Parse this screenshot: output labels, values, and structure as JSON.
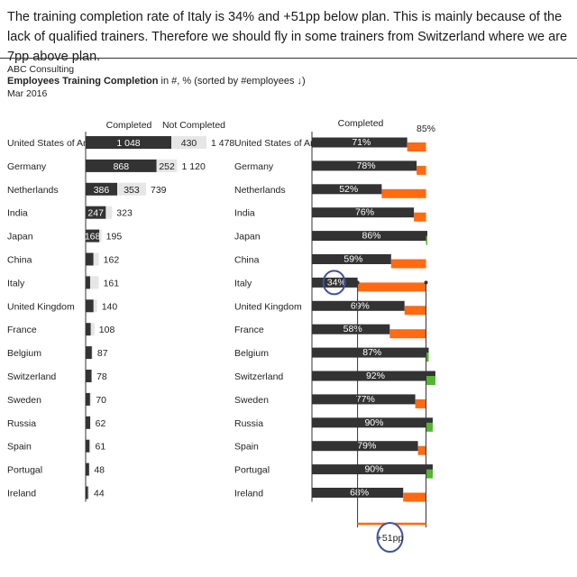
{
  "headline": "The training completion rate of Italy is 34% and +51pp below plan. This is mainly because of the lack of qualified trainers. Therefore we should fly in some trainers from Switzerland where we are 7pp above plan.",
  "company": "ABC Consulting",
  "subtitle": {
    "bold": "Employees Training Completion",
    "rest": " in #, % (sorted by #employees ↓)"
  },
  "date": "Mar 2016",
  "colors": {
    "completed": "#333333",
    "not_completed": "#e6e6e6",
    "below_plan": "#ff6a13",
    "above_plan": "#55b431",
    "highlight": "#3f51a0"
  },
  "chart_data": [
    {
      "type": "bar",
      "orientation": "horizontal",
      "stacked": true,
      "categories": [
        "United States of America",
        "Germany",
        "Netherlands",
        "India",
        "Japan",
        "China",
        "Italy",
        "United Kingdom",
        "France",
        "Belgium",
        "Switzerland",
        "Sweden",
        "Russia",
        "Spain",
        "Portugal",
        "Ireland"
      ],
      "series": [
        {
          "name": "Completed",
          "values": [
            1048,
            868,
            386,
            247,
            168,
            96,
            55,
            97,
            63,
            76,
            72,
            54,
            56,
            48,
            43,
            30
          ]
        },
        {
          "name": "Not Completed",
          "values": [
            430,
            252,
            353,
            76,
            27,
            66,
            106,
            43,
            45,
            11,
            6,
            16,
            6,
            13,
            5,
            14
          ]
        }
      ],
      "totals": [
        1478,
        1120,
        739,
        323,
        195,
        162,
        161,
        140,
        108,
        87,
        78,
        70,
        62,
        61,
        48,
        44
      ],
      "value_labels": {
        "Completed": [
          "1 048",
          "868",
          "386",
          "247",
          "168",
          "",
          "",
          "",
          "",
          "",
          "",
          "",
          "",
          "",
          "",
          ""
        ],
        "Not Completed": [
          "430",
          "252",
          "353",
          "",
          "",
          "",
          "",
          "",
          "",
          "",
          "",
          "",
          "",
          "",
          "",
          ""
        ],
        "totals": [
          "1 478",
          "1 120",
          "739",
          "323",
          "195",
          "162",
          "161",
          "140",
          "108",
          "87",
          "78",
          "70",
          "62",
          "61",
          "48",
          "44"
        ]
      }
    },
    {
      "type": "bar",
      "orientation": "horizontal",
      "categories": [
        "United States of America",
        "Germany",
        "Netherlands",
        "India",
        "Japan",
        "China",
        "Italy",
        "United Kingdom",
        "France",
        "Belgium",
        "Switzerland",
        "Sweden",
        "Russia",
        "Spain",
        "Portugal",
        "Ireland"
      ],
      "series": [
        {
          "name": "Completed",
          "values": [
            71,
            78,
            52,
            76,
            86,
            59,
            34,
            69,
            58,
            87,
            92,
            77,
            90,
            79,
            90,
            68
          ],
          "unit": "%"
        }
      ],
      "value_labels": [
        "71%",
        "78%",
        "52%",
        "76%",
        "86%",
        "59%",
        "34%",
        "69%",
        "58%",
        "87%",
        "92%",
        "77%",
        "90%",
        "79%",
        "90%",
        "68%"
      ],
      "plan": 85,
      "plan_label": "85%",
      "highlight": {
        "category": "Italy",
        "difference": -51,
        "difference_label": "+51pp"
      }
    }
  ]
}
